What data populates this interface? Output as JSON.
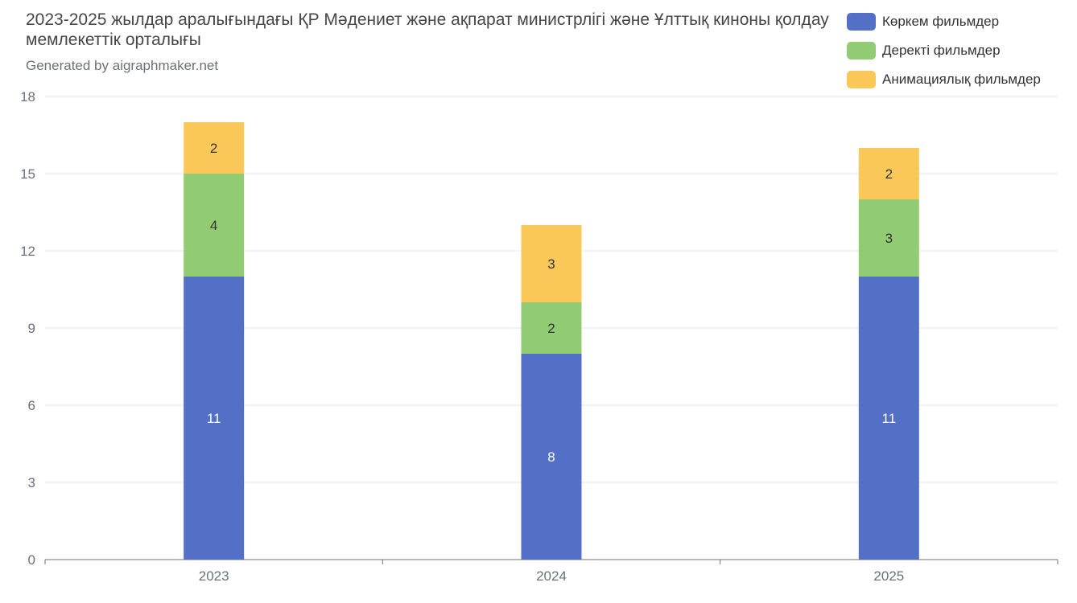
{
  "chart_data": {
    "type": "bar",
    "stacked": true,
    "title": "2023-2025 жылдар аралығындағы ҚР Мәдениет және ақпарат министрлігі және Ұлттық киноны қолдау мемлекеттік орталығы",
    "subtitle": "Generated by aigraphmaker.net",
    "categories": [
      "2023",
      "2024",
      "2025"
    ],
    "series": [
      {
        "name": "Көркем фильмдер",
        "color": "#5470c6",
        "values": [
          11,
          8,
          11
        ]
      },
      {
        "name": "Деректі фильмдер",
        "color": "#91cc75",
        "values": [
          4,
          2,
          3
        ]
      },
      {
        "name": "Анимациялық фильмдер",
        "color": "#fac858",
        "values": [
          2,
          3,
          2
        ]
      }
    ],
    "xlabel": "",
    "ylabel": "",
    "ylim": [
      0,
      18
    ],
    "yticks": [
      0,
      3,
      6,
      9,
      12,
      15,
      18
    ],
    "grid": true,
    "legend_position": "top-right"
  }
}
